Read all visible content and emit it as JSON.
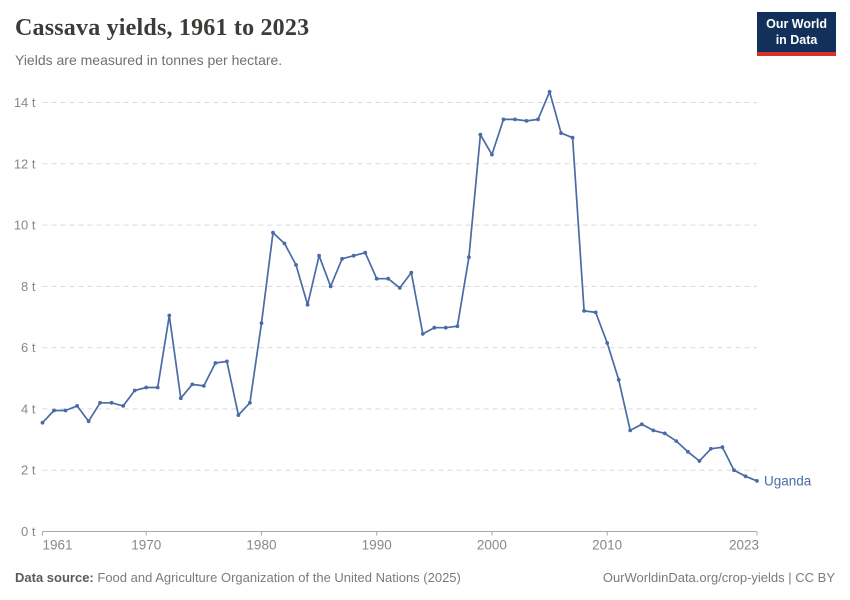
{
  "header": {
    "title": "Cassava yields, 1961 to 2023",
    "subtitle": "Yields are measured in tonnes per hectare."
  },
  "logo": {
    "line1": "Our World",
    "line2": "in Data",
    "bg_color": "#12305a",
    "accent_color": "#d7322b"
  },
  "chart_data": {
    "type": "line",
    "title": "Cassava yields, 1961 to 2023",
    "ylabel": "tonnes per hectare",
    "xlabel": "",
    "xlim": [
      1961,
      2023
    ],
    "ylim": [
      0,
      14
    ],
    "grid": "horizontal-dashed",
    "legend": "end-of-line-label",
    "line_color": "#4a6ba5",
    "grid_color": "#dadada",
    "axis_color": "#a9a9a9",
    "tick_label_color": "#888888",
    "x_ticks": [
      1961,
      1970,
      1980,
      1990,
      2000,
      2010,
      2023
    ],
    "y_ticks": [
      {
        "value": 0,
        "label": "0 t"
      },
      {
        "value": 2,
        "label": "2 t"
      },
      {
        "value": 4,
        "label": "4 t"
      },
      {
        "value": 6,
        "label": "6 t"
      },
      {
        "value": 8,
        "label": "8 t"
      },
      {
        "value": 10,
        "label": "10 t"
      },
      {
        "value": 12,
        "label": "12 t"
      },
      {
        "value": 14,
        "label": "14 t"
      }
    ],
    "series": [
      {
        "name": "Uganda",
        "color": "#4a6ba5",
        "x": [
          1961,
          1962,
          1963,
          1964,
          1965,
          1966,
          1967,
          1968,
          1969,
          1970,
          1971,
          1972,
          1973,
          1974,
          1975,
          1976,
          1977,
          1978,
          1979,
          1980,
          1981,
          1982,
          1983,
          1984,
          1985,
          1986,
          1987,
          1988,
          1989,
          1990,
          1991,
          1992,
          1993,
          1994,
          1995,
          1996,
          1997,
          1998,
          1999,
          2000,
          2001,
          2002,
          2003,
          2004,
          2005,
          2006,
          2007,
          2008,
          2009,
          2010,
          2011,
          2012,
          2013,
          2014,
          2015,
          2016,
          2017,
          2018,
          2019,
          2020,
          2021,
          2022,
          2023
        ],
        "values": [
          3.55,
          3.95,
          3.95,
          4.1,
          3.6,
          4.2,
          4.2,
          4.1,
          4.6,
          4.7,
          4.7,
          7.05,
          4.35,
          4.8,
          4.75,
          5.5,
          5.55,
          3.8,
          4.2,
          6.8,
          9.75,
          9.4,
          8.7,
          7.4,
          9.0,
          8.0,
          8.9,
          9.0,
          9.1,
          8.25,
          8.25,
          7.95,
          8.45,
          6.45,
          6.65,
          6.65,
          6.7,
          8.95,
          12.95,
          12.3,
          13.45,
          13.45,
          13.4,
          13.45,
          14.35,
          13.0,
          12.85,
          7.2,
          7.15,
          6.15,
          4.95,
          3.3,
          3.5,
          3.3,
          3.2,
          2.95,
          2.6,
          2.3,
          2.7,
          2.75,
          2.0,
          1.8,
          1.65
        ]
      }
    ]
  },
  "footer": {
    "source_label": "Data source:",
    "source_text": "Food and Agriculture Organization of the United Nations (2025)",
    "attribution": "OurWorldinData.org/crop-yields | CC BY"
  }
}
